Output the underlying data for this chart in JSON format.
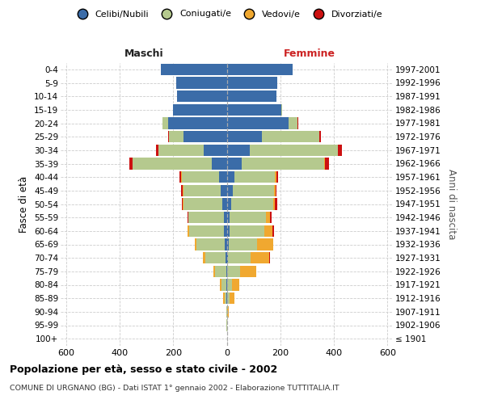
{
  "age_groups": [
    "100+",
    "95-99",
    "90-94",
    "85-89",
    "80-84",
    "75-79",
    "70-74",
    "65-69",
    "60-64",
    "55-59",
    "50-54",
    "45-49",
    "40-44",
    "35-39",
    "30-34",
    "25-29",
    "20-24",
    "15-19",
    "10-14",
    "5-9",
    "0-4"
  ],
  "birth_years": [
    "≤ 1901",
    "1902-1906",
    "1907-1911",
    "1912-1916",
    "1917-1921",
    "1922-1926",
    "1927-1931",
    "1932-1936",
    "1937-1941",
    "1942-1946",
    "1947-1951",
    "1952-1956",
    "1957-1961",
    "1962-1966",
    "1967-1971",
    "1972-1976",
    "1977-1981",
    "1982-1986",
    "1987-1991",
    "1992-1996",
    "1997-2001"
  ],
  "male_celibi": [
    0,
    0,
    0,
    1,
    2,
    3,
    5,
    7,
    10,
    12,
    17,
    22,
    28,
    55,
    85,
    160,
    220,
    200,
    185,
    190,
    245
  ],
  "male_coniugati": [
    0,
    1,
    2,
    8,
    18,
    40,
    75,
    105,
    130,
    130,
    145,
    140,
    140,
    295,
    170,
    55,
    20,
    1,
    1,
    0,
    0
  ],
  "male_vedovi": [
    0,
    0,
    1,
    4,
    5,
    8,
    10,
    8,
    5,
    2,
    1,
    1,
    1,
    1,
    0,
    0,
    0,
    0,
    0,
    0,
    0
  ],
  "male_divorziati": [
    0,
    0,
    0,
    0,
    0,
    0,
    0,
    0,
    2,
    2,
    5,
    7,
    8,
    12,
    9,
    3,
    1,
    0,
    0,
    0,
    0
  ],
  "female_nubili": [
    0,
    0,
    0,
    2,
    2,
    3,
    4,
    7,
    10,
    12,
    18,
    22,
    30,
    55,
    85,
    130,
    230,
    205,
    185,
    190,
    245
  ],
  "female_coniugate": [
    0,
    1,
    3,
    8,
    18,
    48,
    85,
    105,
    130,
    135,
    155,
    155,
    150,
    310,
    330,
    215,
    35,
    2,
    1,
    0,
    0
  ],
  "female_vedove": [
    0,
    2,
    5,
    20,
    28,
    60,
    70,
    60,
    30,
    15,
    8,
    5,
    5,
    2,
    1,
    1,
    0,
    0,
    0,
    0,
    0
  ],
  "female_divorziate": [
    0,
    0,
    0,
    0,
    0,
    0,
    2,
    2,
    5,
    5,
    8,
    5,
    8,
    15,
    15,
    5,
    2,
    0,
    0,
    0,
    0
  ],
  "color_celibi": "#3b6ca8",
  "color_coniugati": "#b5c98e",
  "color_vedovi": "#f0a830",
  "color_divorziati": "#cc1111",
  "xlim": 620,
  "title": "Popolazione per età, sesso e stato civile - 2002",
  "subtitle": "COMUNE DI URGNANO (BG) - Dati ISTAT 1° gennaio 2002 - Elaborazione TUTTITALIA.IT",
  "ylabel_left": "Fasce di età",
  "ylabel_right": "Anni di nascita",
  "label_maschi": "Maschi",
  "label_femmine": "Femmine",
  "legend_labels": [
    "Celibi/Nubili",
    "Coniugati/e",
    "Vedovi/e",
    "Divorziati/e"
  ],
  "bg_color": "#ffffff",
  "grid_color": "#cccccc",
  "bar_height": 0.85
}
